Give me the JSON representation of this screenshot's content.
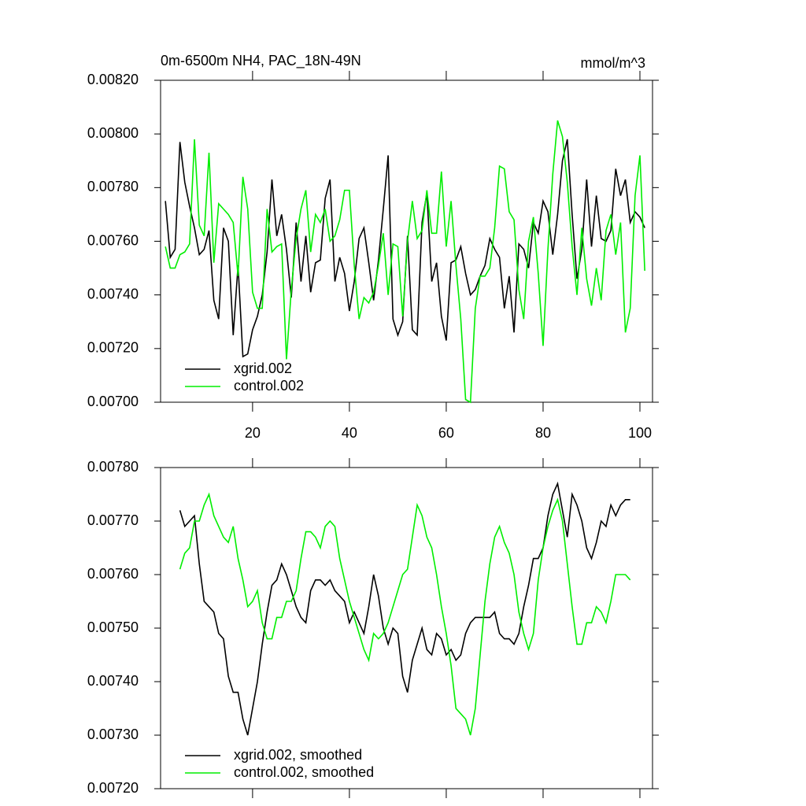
{
  "chart_data": [
    {
      "type": "line",
      "title": "0m-6500m NH4, PAC_18N-49N",
      "units": "mmol/m^3",
      "legend": "lower left",
      "x": [
        2,
        3,
        4,
        5,
        6,
        7,
        8,
        9,
        10,
        11,
        12,
        13,
        14,
        15,
        16,
        17,
        18,
        19,
        20,
        21,
        22,
        23,
        24,
        25,
        26,
        27,
        28,
        29,
        30,
        31,
        32,
        33,
        34,
        35,
        36,
        37,
        38,
        39,
        40,
        41,
        42,
        43,
        44,
        45,
        46,
        47,
        48,
        49,
        50,
        51,
        52,
        53,
        54,
        55,
        56,
        57,
        58,
        59,
        60,
        61,
        62,
        63,
        64,
        65,
        66,
        67,
        68,
        69,
        70,
        71,
        72,
        73,
        74,
        75,
        76,
        77,
        78,
        79,
        80,
        81,
        82,
        83,
        84,
        85,
        86,
        87,
        88,
        89,
        90,
        91,
        92,
        93,
        94,
        95,
        96,
        97,
        98,
        99,
        100,
        101
      ],
      "series": [
        {
          "name": "xgrid.002",
          "color": "#000000",
          "values": [
            0.00775,
            0.00754,
            0.00757,
            0.00797,
            0.00782,
            0.00773,
            0.00765,
            0.00755,
            0.00757,
            0.00764,
            0.00738,
            0.00731,
            0.00765,
            0.0076,
            0.00725,
            0.00751,
            0.00717,
            0.00718,
            0.00727,
            0.00732,
            0.0074,
            0.00756,
            0.00783,
            0.00762,
            0.0077,
            0.00757,
            0.00739,
            0.00767,
            0.00745,
            0.00762,
            0.00741,
            0.00752,
            0.00753,
            0.00776,
            0.00783,
            0.00745,
            0.00754,
            0.00748,
            0.00734,
            0.00745,
            0.00761,
            0.00765,
            0.00752,
            0.00738,
            0.00753,
            0.00772,
            0.00792,
            0.00731,
            0.00725,
            0.0073,
            0.00762,
            0.00727,
            0.00725,
            0.00767,
            0.00778,
            0.00745,
            0.00752,
            0.00732,
            0.00723,
            0.00752,
            0.00753,
            0.00758,
            0.00748,
            0.0074,
            0.00742,
            0.00747,
            0.00751,
            0.00761,
            0.00757,
            0.00754,
            0.00735,
            0.00747,
            0.00726,
            0.00759,
            0.00757,
            0.0075,
            0.00767,
            0.00763,
            0.00775,
            0.00771,
            0.00755,
            0.0077,
            0.0079,
            0.00798,
            0.0077,
            0.00746,
            0.00757,
            0.00783,
            0.00758,
            0.00777,
            0.00761,
            0.0076,
            0.00764,
            0.00787,
            0.00777,
            0.00783,
            0.00767,
            0.00771,
            0.00769,
            0.00765
          ]
        },
        {
          "name": "control.002",
          "color": "#00ee00",
          "values": [
            0.00758,
            0.0075,
            0.0075,
            0.00755,
            0.00756,
            0.00759,
            0.00798,
            0.00766,
            0.00762,
            0.00793,
            0.00752,
            0.00774,
            0.00772,
            0.0077,
            0.00767,
            0.00747,
            0.00784,
            0.00772,
            0.00741,
            0.00735,
            0.00735,
            0.00772,
            0.00756,
            0.00758,
            0.00759,
            0.00716,
            0.00742,
            0.00761,
            0.00772,
            0.00779,
            0.00756,
            0.0077,
            0.00767,
            0.00772,
            0.0076,
            0.00762,
            0.00768,
            0.00779,
            0.00779,
            0.00751,
            0.00731,
            0.00739,
            0.00737,
            0.00741,
            0.00751,
            0.00763,
            0.0074,
            0.00759,
            0.00758,
            0.00732,
            0.0076,
            0.00775,
            0.00761,
            0.00764,
            0.00779,
            0.00763,
            0.00763,
            0.00786,
            0.00758,
            0.00775,
            0.00751,
            0.00731,
            0.00701,
            0.007,
            0.00735,
            0.00747,
            0.00747,
            0.0075,
            0.00765,
            0.00788,
            0.00787,
            0.00771,
            0.00768,
            0.00742,
            0.00731,
            0.0076,
            0.00769,
            0.00748,
            0.00721,
            0.00757,
            0.00785,
            0.00805,
            0.00799,
            0.00782,
            0.00758,
            0.0074,
            0.00765,
            0.00746,
            0.00736,
            0.0075,
            0.00738,
            0.00764,
            0.0077,
            0.00755,
            0.00767,
            0.00726,
            0.00735,
            0.00777,
            0.00792,
            0.00749
          ]
        }
      ],
      "xlim": [
        1,
        102.6
      ],
      "xticks": [
        20,
        40,
        60,
        80,
        100
      ],
      "ylim": [
        0.007,
        0.0082
      ],
      "yticks": [
        {
          "value": 0.007,
          "label": "0.00700"
        },
        {
          "value": 0.0072,
          "label": "0.00720"
        },
        {
          "value": 0.0074,
          "label": "0.00740"
        },
        {
          "value": 0.0076,
          "label": "0.00760"
        },
        {
          "value": 0.0078,
          "label": "0.00780"
        },
        {
          "value": 0.008,
          "label": "0.00800"
        },
        {
          "value": 0.0082,
          "label": "0.00820"
        }
      ]
    },
    {
      "type": "line",
      "legend": "lower left",
      "x": [
        5,
        6,
        7,
        8,
        9,
        10,
        11,
        12,
        13,
        14,
        15,
        16,
        17,
        18,
        19,
        20,
        21,
        22,
        23,
        24,
        25,
        26,
        27,
        28,
        29,
        30,
        31,
        32,
        33,
        34,
        35,
        36,
        37,
        38,
        39,
        40,
        41,
        42,
        43,
        44,
        45,
        46,
        47,
        48,
        49,
        50,
        51,
        52,
        53,
        54,
        55,
        56,
        57,
        58,
        59,
        60,
        61,
        62,
        63,
        64,
        65,
        66,
        67,
        68,
        69,
        70,
        71,
        72,
        73,
        74,
        75,
        76,
        77,
        78,
        79,
        80,
        81,
        82,
        83,
        84,
        85,
        86,
        87,
        88,
        89,
        90,
        91,
        92,
        93,
        94,
        95,
        96,
        97,
        98
      ],
      "series": [
        {
          "name": "xgrid.002, smoothed",
          "color": "#000000",
          "values": [
            0.00772,
            0.00769,
            0.0077,
            0.00771,
            0.00762,
            0.00755,
            0.00754,
            0.00753,
            0.00749,
            0.00748,
            0.00741,
            0.00738,
            0.00738,
            0.00733,
            0.0073,
            0.00735,
            0.0074,
            0.00747,
            0.00753,
            0.00758,
            0.00759,
            0.00762,
            0.0076,
            0.00757,
            0.00754,
            0.00752,
            0.00751,
            0.00757,
            0.00759,
            0.00759,
            0.00758,
            0.00759,
            0.00757,
            0.00756,
            0.00755,
            0.00751,
            0.00753,
            0.00751,
            0.00749,
            0.00754,
            0.0076,
            0.00756,
            0.0075,
            0.00747,
            0.0075,
            0.00749,
            0.00741,
            0.00738,
            0.00744,
            0.00747,
            0.0075,
            0.00746,
            0.00745,
            0.00749,
            0.00748,
            0.00745,
            0.00746,
            0.00744,
            0.00745,
            0.00749,
            0.00751,
            0.00752,
            0.00752,
            0.00752,
            0.00752,
            0.00753,
            0.00749,
            0.00748,
            0.00748,
            0.00747,
            0.00749,
            0.00754,
            0.00758,
            0.00763,
            0.00763,
            0.00765,
            0.00771,
            0.00775,
            0.00777,
            0.00772,
            0.00767,
            0.00775,
            0.00773,
            0.0077,
            0.00765,
            0.00763,
            0.00766,
            0.0077,
            0.00769,
            0.00773,
            0.00771,
            0.00773,
            0.00774,
            0.00774
          ]
        },
        {
          "name": "control.002, smoothed",
          "color": "#00ee00",
          "values": [
            0.00761,
            0.00764,
            0.00765,
            0.0077,
            0.0077,
            0.00773,
            0.00775,
            0.00771,
            0.00769,
            0.00767,
            0.00766,
            0.00769,
            0.00763,
            0.00759,
            0.00754,
            0.00755,
            0.00757,
            0.00751,
            0.00748,
            0.00748,
            0.00752,
            0.00752,
            0.00755,
            0.00755,
            0.00757,
            0.00763,
            0.00768,
            0.00768,
            0.00767,
            0.00765,
            0.00769,
            0.0077,
            0.00769,
            0.00763,
            0.00759,
            0.00755,
            0.00752,
            0.00749,
            0.00746,
            0.00744,
            0.00749,
            0.00748,
            0.00749,
            0.00751,
            0.00754,
            0.00757,
            0.0076,
            0.00761,
            0.00767,
            0.00773,
            0.00771,
            0.00767,
            0.00765,
            0.0076,
            0.00754,
            0.00749,
            0.00743,
            0.00735,
            0.00734,
            0.00733,
            0.0073,
            0.00735,
            0.00745,
            0.00755,
            0.00762,
            0.00767,
            0.00769,
            0.00766,
            0.00764,
            0.0076,
            0.00753,
            0.00749,
            0.00746,
            0.00749,
            0.00759,
            0.00765,
            0.00769,
            0.00772,
            0.00774,
            0.0077,
            0.00762,
            0.00754,
            0.00747,
            0.00747,
            0.00751,
            0.00751,
            0.00754,
            0.00753,
            0.00751,
            0.00755,
            0.0076,
            0.0076,
            0.0076,
            0.00759
          ]
        }
      ],
      "xlim": [
        1,
        102.6
      ],
      "xticks": [
        20,
        40,
        60,
        80,
        100
      ],
      "ylim": [
        0.0072,
        0.0078
      ],
      "yticks": [
        {
          "value": 0.0072,
          "label": "0.00720"
        },
        {
          "value": 0.0073,
          "label": "0.00730"
        },
        {
          "value": 0.0074,
          "label": "0.00740"
        },
        {
          "value": 0.0075,
          "label": "0.00750"
        },
        {
          "value": 0.0076,
          "label": "0.00760"
        },
        {
          "value": 0.0077,
          "label": "0.00770"
        },
        {
          "value": 0.0078,
          "label": "0.00780"
        }
      ]
    }
  ]
}
